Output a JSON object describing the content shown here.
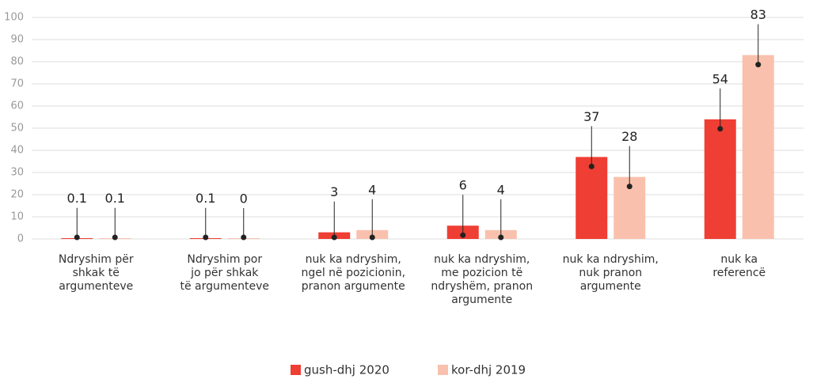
{
  "chart_data": {
    "type": "bar",
    "categories": [
      [
        "Ndryshim për",
        "shkak të",
        "argumenteve"
      ],
      [
        "Ndryshim por",
        "jo për shkak",
        "të argumenteve"
      ],
      [
        "nuk ka ndryshim,",
        "ngel në pozicionin,",
        "pranon argumente"
      ],
      [
        "nuk ka ndryshim,",
        "me pozicion të",
        "ndryshëm, pranon",
        "argumente"
      ],
      [
        "nuk ka ndryshim,",
        "nuk pranon",
        "argumente"
      ],
      [
        "nuk ka",
        "referencë"
      ]
    ],
    "series": [
      {
        "name": "gush-dhj 2020",
        "color": "#ef3e33",
        "values": [
          0.1,
          0.1,
          3,
          6,
          37,
          54
        ]
      },
      {
        "name": "kor-dhj 2019",
        "color": "#f9c1ad",
        "values": [
          0.1,
          0,
          4,
          4,
          28,
          83
        ]
      }
    ],
    "ylim": [
      0,
      100
    ],
    "yticks": [
      0,
      10,
      20,
      30,
      40,
      50,
      60,
      70,
      80,
      90,
      100
    ],
    "grid": true,
    "legend": "bottom"
  }
}
